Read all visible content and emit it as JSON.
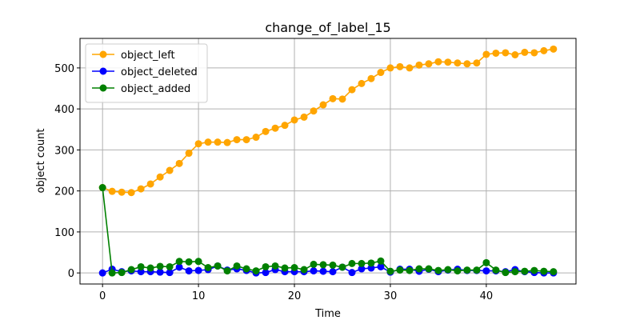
{
  "chart_data": {
    "type": "line",
    "title": "change_of_label_15",
    "xlabel": "Time",
    "ylabel": "object count",
    "xlim": [
      -2.35,
      49.35
    ],
    "ylim": [
      -27,
      572
    ],
    "xticks": [
      0,
      10,
      20,
      30,
      40
    ],
    "yticks": [
      0,
      100,
      200,
      300,
      400,
      500
    ],
    "grid": true,
    "legend_position": "top-left",
    "x": [
      0,
      1,
      2,
      3,
      4,
      5,
      6,
      7,
      8,
      9,
      10,
      11,
      12,
      13,
      14,
      15,
      16,
      17,
      18,
      19,
      20,
      21,
      22,
      23,
      24,
      25,
      26,
      27,
      28,
      29,
      30,
      31,
      32,
      33,
      34,
      35,
      36,
      37,
      38,
      39,
      40,
      41,
      42,
      43,
      44,
      45,
      46,
      47
    ],
    "series": [
      {
        "name": "object_left",
        "color": "#ffa500",
        "values": [
          208,
          199,
          197,
          196,
          205,
          217,
          234,
          250,
          267,
          292,
          315,
          319,
          319,
          318,
          325,
          325,
          331,
          345,
          353,
          360,
          373,
          380,
          395,
          410,
          425,
          424,
          447,
          462,
          474,
          489,
          500,
          503,
          500,
          507,
          510,
          515,
          514,
          512,
          510,
          512,
          533,
          536,
          537,
          532,
          538,
          537,
          542,
          546
        ]
      },
      {
        "name": "object_deleted",
        "color": "#0000ff",
        "values": [
          0,
          9,
          3,
          5,
          3,
          3,
          2,
          1,
          14,
          5,
          6,
          8,
          17,
          7,
          10,
          6,
          0,
          1,
          8,
          3,
          3,
          3,
          5,
          4,
          3,
          14,
          1,
          10,
          12,
          15,
          2,
          9,
          9,
          4,
          9,
          3,
          7,
          9,
          6,
          6,
          5,
          5,
          3,
          8,
          3,
          1,
          0,
          0
        ]
      },
      {
        "name": "object_added",
        "color": "#008000",
        "values": [
          208,
          0,
          1,
          8,
          15,
          12,
          16,
          15,
          28,
          27,
          28,
          13,
          17,
          5,
          17,
          10,
          5,
          15,
          17,
          12,
          13,
          8,
          21,
          20,
          19,
          14,
          23,
          23,
          24,
          29,
          4,
          7,
          6,
          10,
          10,
          6,
          8,
          5,
          7,
          7,
          25,
          7,
          1,
          3,
          4,
          6,
          4,
          3
        ]
      }
    ]
  }
}
